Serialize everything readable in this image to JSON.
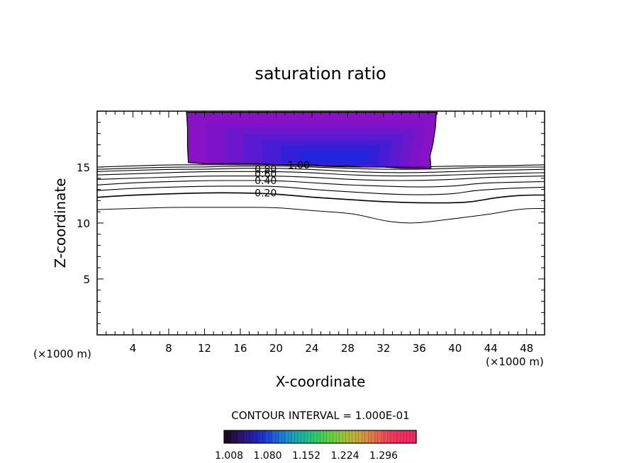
{
  "chart_data": {
    "type": "contour",
    "title": "saturation ratio",
    "xlabel": "X-coordinate",
    "ylabel": "Z-coordinate",
    "x_unit_left": "(×1000 m)",
    "x_unit_right": "(×1000 m)",
    "xlim": [
      0,
      50
    ],
    "ylim": [
      0,
      20
    ],
    "x_ticks": [
      4,
      8,
      12,
      16,
      20,
      24,
      28,
      32,
      36,
      40,
      44,
      48
    ],
    "y_ticks": [
      5,
      10,
      15
    ],
    "contour_interval_text": "CONTOUR INTERVAL = 1.000E-01",
    "contour_labels": [
      {
        "text": "1.00",
        "x": 21.3,
        "z": 15.2
      },
      {
        "text": "0.80",
        "x": 17.6,
        "z": 14.8
      },
      {
        "text": "0.60",
        "x": 17.6,
        "z": 14.4
      },
      {
        "text": "0.40",
        "x": 17.6,
        "z": 13.8
      },
      {
        "text": "0.20",
        "x": 17.6,
        "z": 12.7
      }
    ],
    "contours": [
      {
        "value": 0.1,
        "width": 1.0,
        "points": [
          [
            0,
            11.2
          ],
          [
            4,
            11.3
          ],
          [
            8,
            11.4
          ],
          [
            12,
            11.4
          ],
          [
            16,
            11.4
          ],
          [
            20,
            11.4
          ],
          [
            24,
            11.1
          ],
          [
            28,
            10.9
          ],
          [
            30,
            10.6
          ],
          [
            32,
            10.2
          ],
          [
            34,
            10.0
          ],
          [
            36,
            10.0
          ],
          [
            38,
            10.2
          ],
          [
            40,
            10.4
          ],
          [
            42,
            10.6
          ],
          [
            44,
            10.8
          ],
          [
            46,
            11.1
          ],
          [
            48,
            11.3
          ],
          [
            50,
            11.3
          ]
        ]
      },
      {
        "value": 0.2,
        "width": 1.6,
        "points": [
          [
            0,
            12.3
          ],
          [
            4,
            12.5
          ],
          [
            8,
            12.6
          ],
          [
            12,
            12.7
          ],
          [
            16,
            12.7
          ],
          [
            20,
            12.6
          ],
          [
            24,
            12.3
          ],
          [
            28,
            12.1
          ],
          [
            32,
            11.9
          ],
          [
            36,
            11.8
          ],
          [
            40,
            11.8
          ],
          [
            42,
            11.9
          ],
          [
            44,
            12.2
          ],
          [
            46,
            12.4
          ],
          [
            48,
            12.5
          ],
          [
            50,
            12.5
          ]
        ]
      },
      {
        "value": 0.3,
        "width": 1.1,
        "points": [
          [
            0,
            12.9
          ],
          [
            4,
            13.1
          ],
          [
            8,
            13.2
          ],
          [
            12,
            13.3
          ],
          [
            16,
            13.3
          ],
          [
            20,
            13.3
          ],
          [
            24,
            13.0
          ],
          [
            28,
            12.8
          ],
          [
            32,
            12.6
          ],
          [
            36,
            12.5
          ],
          [
            40,
            12.6
          ],
          [
            42,
            12.9
          ],
          [
            44,
            13.0
          ],
          [
            46,
            13.1
          ],
          [
            50,
            13.2
          ]
        ]
      },
      {
        "value": 0.4,
        "width": 1.1,
        "points": [
          [
            0,
            13.4
          ],
          [
            4,
            13.6
          ],
          [
            8,
            13.7
          ],
          [
            12,
            13.8
          ],
          [
            16,
            13.8
          ],
          [
            20,
            13.8
          ],
          [
            24,
            13.6
          ],
          [
            28,
            13.4
          ],
          [
            32,
            13.3
          ],
          [
            36,
            13.2
          ],
          [
            40,
            13.3
          ],
          [
            42,
            13.5
          ],
          [
            44,
            13.6
          ],
          [
            50,
            13.7
          ]
        ]
      },
      {
        "value": 0.5,
        "width": 1.1,
        "points": [
          [
            0,
            13.9
          ],
          [
            4,
            14.0
          ],
          [
            8,
            14.1
          ],
          [
            12,
            14.2
          ],
          [
            16,
            14.2
          ],
          [
            20,
            14.2
          ],
          [
            24,
            14.1
          ],
          [
            28,
            13.9
          ],
          [
            32,
            13.8
          ],
          [
            36,
            13.8
          ],
          [
            40,
            13.9
          ],
          [
            44,
            14.1
          ],
          [
            50,
            14.2
          ]
        ]
      },
      {
        "value": 0.6,
        "width": 1.1,
        "points": [
          [
            0,
            14.3
          ],
          [
            4,
            14.4
          ],
          [
            8,
            14.5
          ],
          [
            12,
            14.6
          ],
          [
            16,
            14.6
          ],
          [
            20,
            14.6
          ],
          [
            24,
            14.5
          ],
          [
            28,
            14.3
          ],
          [
            32,
            14.2
          ],
          [
            36,
            14.2
          ],
          [
            40,
            14.3
          ],
          [
            44,
            14.4
          ],
          [
            50,
            14.5
          ]
        ]
      },
      {
        "value": 0.7,
        "width": 1.1,
        "points": [
          [
            0,
            14.6
          ],
          [
            4,
            14.7
          ],
          [
            8,
            14.8
          ],
          [
            12,
            14.8
          ],
          [
            16,
            14.9
          ],
          [
            20,
            14.9
          ],
          [
            24,
            14.8
          ],
          [
            28,
            14.6
          ],
          [
            32,
            14.5
          ],
          [
            36,
            14.5
          ],
          [
            40,
            14.6
          ],
          [
            44,
            14.7
          ],
          [
            50,
            14.8
          ]
        ]
      },
      {
        "value": 0.8,
        "width": 1.1,
        "points": [
          [
            0,
            14.8
          ],
          [
            4,
            14.9
          ],
          [
            8,
            15.0
          ],
          [
            12,
            15.0
          ],
          [
            16,
            15.1
          ],
          [
            20,
            15.1
          ],
          [
            24,
            15.0
          ],
          [
            28,
            14.9
          ],
          [
            32,
            14.8
          ],
          [
            36,
            14.8
          ],
          [
            40,
            14.9
          ],
          [
            44,
            15.0
          ],
          [
            50,
            15.0
          ]
        ]
      },
      {
        "value": 0.9,
        "width": 1.1,
        "points": [
          [
            0,
            15.0
          ],
          [
            4,
            15.1
          ],
          [
            8,
            15.2
          ],
          [
            12,
            15.2
          ],
          [
            16,
            15.2
          ],
          [
            20,
            15.2
          ],
          [
            24,
            15.1
          ],
          [
            28,
            15.0
          ],
          [
            32,
            15.0
          ],
          [
            36,
            15.0
          ],
          [
            40,
            15.1
          ],
          [
            44,
            15.1
          ],
          [
            50,
            15.2
          ]
        ]
      }
    ],
    "supersaturated_region": {
      "fill_levels": [
        1.008,
        1.02,
        1.04,
        1.06,
        1.08,
        1.1,
        1.12
      ],
      "colors": [
        "#8a12c6",
        "#7c14c8",
        "#6c17cc",
        "#5a1ad0",
        "#461dd4",
        "#3420d8",
        "#2226dc"
      ],
      "boundary": [
        [
          10.0,
          19.9
        ],
        [
          10.1,
          18.5
        ],
        [
          10.1,
          16.8
        ],
        [
          10.2,
          15.4
        ],
        [
          12,
          15.3
        ],
        [
          14,
          15.3
        ],
        [
          16,
          15.3
        ],
        [
          18,
          15.3
        ],
        [
          20,
          15.2
        ],
        [
          22,
          15.2
        ],
        [
          24,
          15.2
        ],
        [
          26,
          15.1
        ],
        [
          28,
          15.1
        ],
        [
          30,
          15.0
        ],
        [
          32,
          15.0
        ],
        [
          34,
          14.9
        ],
        [
          36,
          14.9
        ],
        [
          37.3,
          14.9
        ],
        [
          37.2,
          16.0
        ],
        [
          37.5,
          17.0
        ],
        [
          37.8,
          18.5
        ],
        [
          37.9,
          19.9
        ]
      ]
    },
    "colorbar": {
      "tick_labels": [
        "1.008",
        "1.080",
        "1.152",
        "1.224",
        "1.296"
      ],
      "colors": [
        "#1a0a26",
        "#24104a",
        "#281670",
        "#281c94",
        "#2024b4",
        "#1c34cc",
        "#1c4ad8",
        "#1c64d8",
        "#1c7ed0",
        "#1c96c4",
        "#1ca8b0",
        "#1cb898",
        "#24c480",
        "#34cc68",
        "#4cd054",
        "#64d044",
        "#80cc3c",
        "#9cc438",
        "#b4b838",
        "#c8a83c",
        "#d89440",
        "#e47c48",
        "#ec6450",
        "#f04c58",
        "#f23c5c",
        "#f43060",
        "#f42c64",
        "#f22a66"
      ]
    }
  }
}
